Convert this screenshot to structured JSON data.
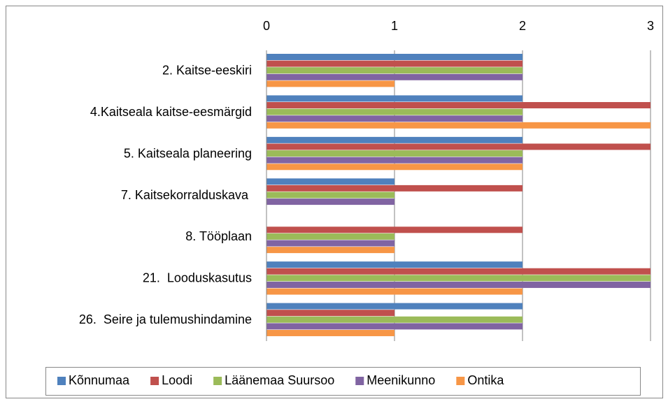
{
  "chart_data": {
    "type": "bar",
    "orientation": "horizontal",
    "categories": [
      "2. Kaitse-eeskiri",
      "4.Kaitseala kaitse-eesmärgid",
      "5. Kaitseala planeering",
      "7. Kaitsekorralduskava ",
      "8. Tööplaan",
      "21.  Looduskasutus",
      "26.  Seire ja tulemushindamine"
    ],
    "series": [
      {
        "name": "Kõnnumaa",
        "color": "#4f81bd",
        "values": [
          2,
          2,
          2,
          1,
          0,
          2,
          2
        ]
      },
      {
        "name": "Loodi",
        "color": "#c0504d",
        "values": [
          2,
          3,
          3,
          2,
          2,
          3,
          1
        ]
      },
      {
        "name": "Läänemaa Suursoo",
        "color": "#9bbb59",
        "values": [
          2,
          2,
          2,
          1,
          1,
          3,
          2
        ]
      },
      {
        "name": "Meenikunno",
        "color": "#8064a2",
        "values": [
          2,
          2,
          2,
          1,
          1,
          3,
          2
        ]
      },
      {
        "name": "Ontika",
        "color": "#f79646",
        "values": [
          1,
          3,
          2,
          0,
          1,
          2,
          1
        ]
      }
    ],
    "xlim": [
      0,
      3
    ],
    "xticks": [
      0,
      1,
      2,
      3
    ],
    "grid": true,
    "legend": "bottom"
  }
}
